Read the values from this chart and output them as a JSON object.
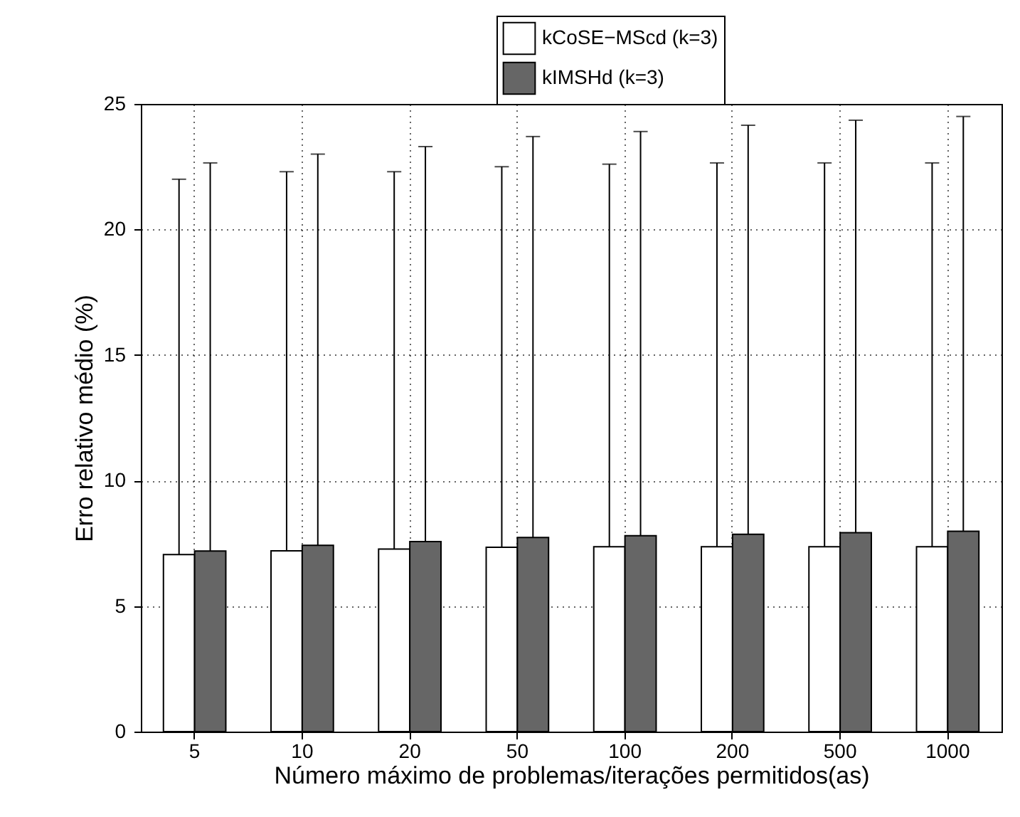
{
  "chart_data": {
    "type": "bar",
    "xlabel": "Número máximo de problemas/iterações permitidos(as)",
    "ylabel": "Erro relativo médio (%)",
    "categories": [
      "5",
      "10",
      "20",
      "50",
      "100",
      "200",
      "500",
      "1000"
    ],
    "series": [
      {
        "name": "kCoSE−MScd (k=3)",
        "color": "#ffffff",
        "values": [
          7.05,
          7.2,
          7.27,
          7.34,
          7.36,
          7.36,
          7.36,
          7.36
        ],
        "errors": [
          [
            7.05,
            22.0
          ],
          [
            7.2,
            22.3
          ],
          [
            7.27,
            22.3
          ],
          [
            7.34,
            22.5
          ],
          [
            7.36,
            22.6
          ],
          [
            7.36,
            22.65
          ],
          [
            7.36,
            22.65
          ],
          [
            7.36,
            22.65
          ]
        ]
      },
      {
        "name": "kIMSHd (k=3)",
        "color": "#666666",
        "values": [
          7.19,
          7.42,
          7.57,
          7.73,
          7.8,
          7.86,
          7.92,
          7.98
        ],
        "errors": [
          [
            7.19,
            22.65
          ],
          [
            7.42,
            23.0
          ],
          [
            7.57,
            23.3
          ],
          [
            7.73,
            23.7
          ],
          [
            7.8,
            23.9
          ],
          [
            7.86,
            24.15
          ],
          [
            7.92,
            24.35
          ],
          [
            7.98,
            24.5
          ]
        ]
      }
    ],
    "ylim": [
      0,
      25
    ],
    "yticks": [
      0,
      5,
      10,
      15,
      20,
      25
    ],
    "grid": true,
    "legend": "top"
  }
}
